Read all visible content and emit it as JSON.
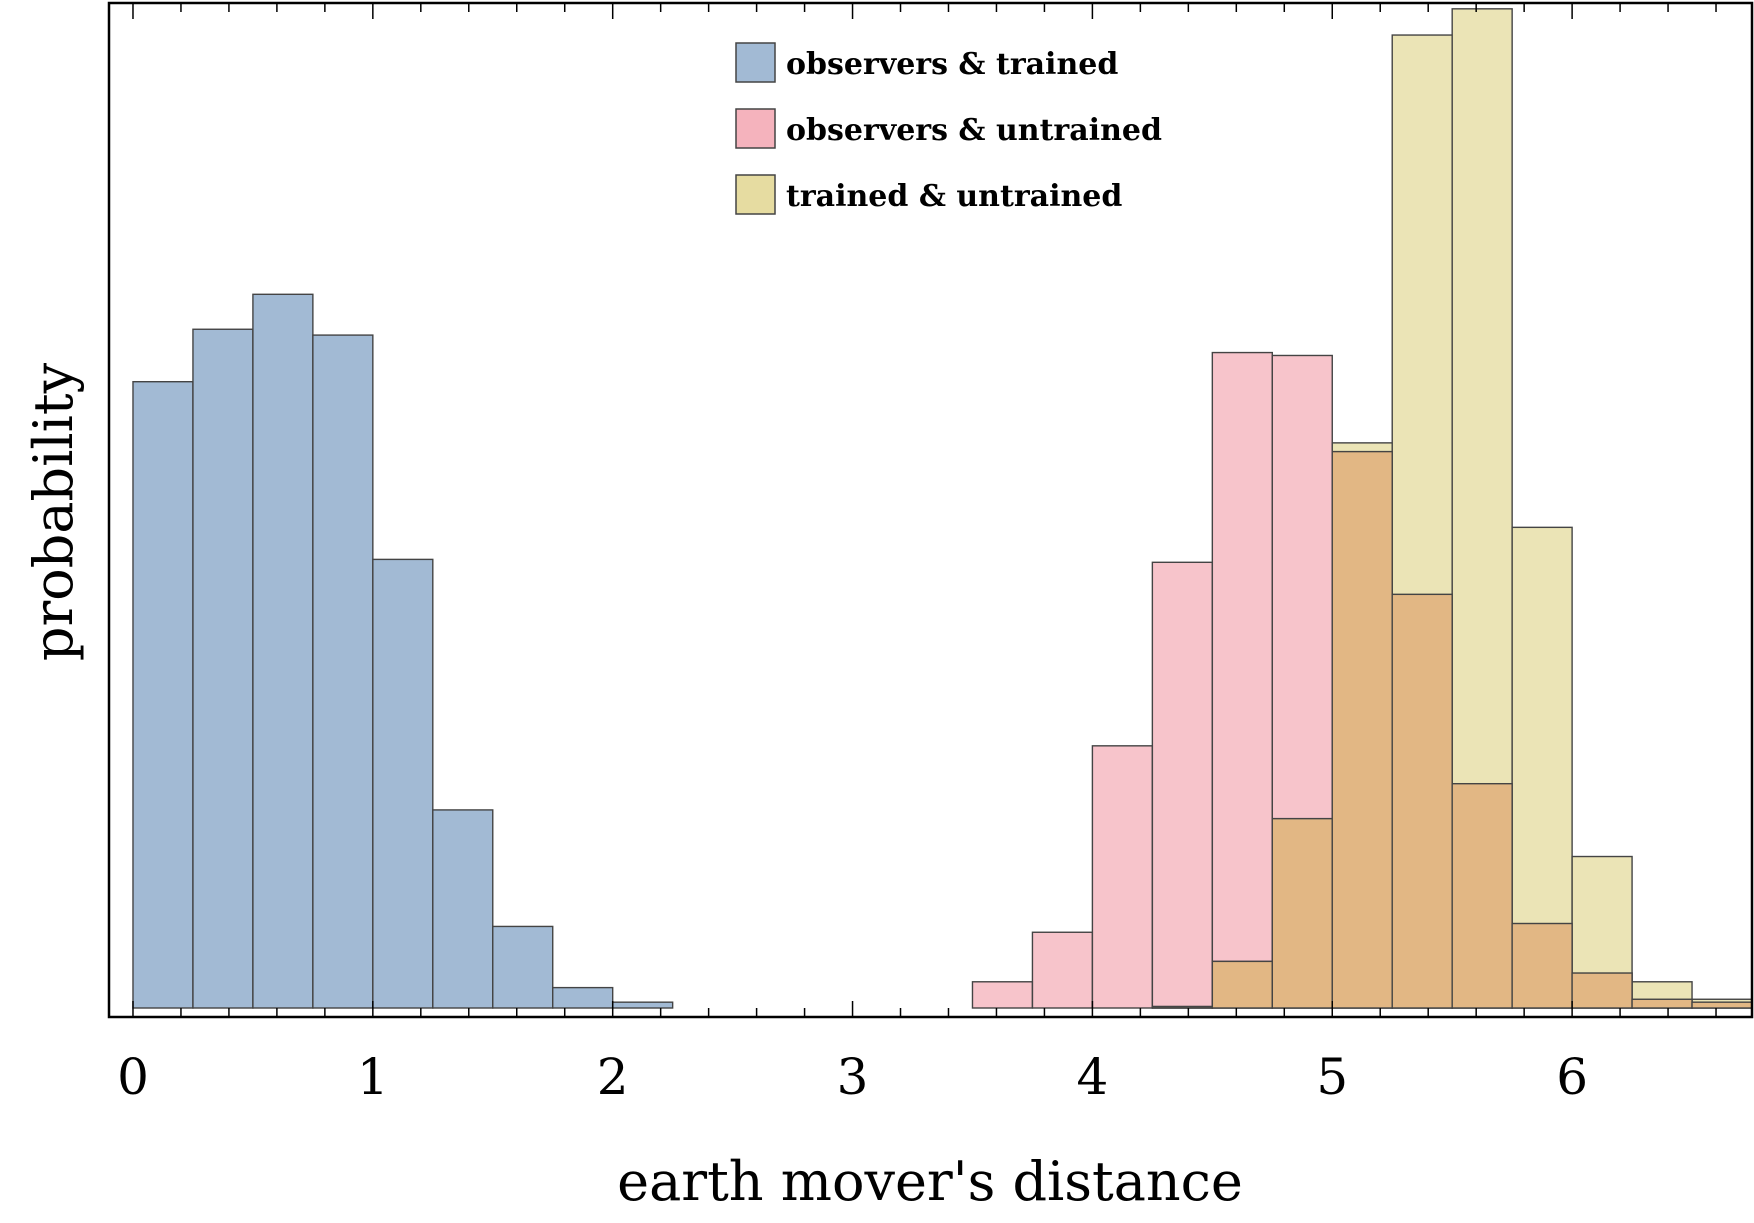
{
  "chart_data": {
    "type": "bar",
    "xlabel": "earth mover's distance",
    "ylabel": "probability",
    "xlim": [
      -0.1,
      6.75
    ],
    "ylim": [
      0,
      0.345
    ],
    "x_ticks": [
      "0",
      "1",
      "2",
      "3",
      "4",
      "5",
      "6"
    ],
    "y_ticks_shown": false,
    "bin_width": 0.25,
    "legend_position": "top-center",
    "series": [
      {
        "name": "observers & trained",
        "color": "#a2bad4",
        "bin_starts": [
          0,
          0.25,
          0.5,
          0.75,
          1.0,
          1.25,
          1.5,
          1.75,
          2.0
        ],
        "values": [
          0.215,
          0.233,
          0.245,
          0.231,
          0.154,
          0.068,
          0.028,
          0.007,
          0.002
        ]
      },
      {
        "name": "observers & untrained",
        "color": "#f5b3bd",
        "bin_starts": [
          3.5,
          3.75,
          4.0,
          4.25,
          4.5,
          4.75,
          5.0,
          5.25,
          5.5,
          5.75,
          6.0,
          6.25,
          6.5
        ],
        "values": [
          0.009,
          0.026,
          0.09,
          0.153,
          0.225,
          0.224,
          0.191,
          0.142,
          0.077,
          0.029,
          0.012,
          0.003,
          0.002
        ]
      },
      {
        "name": "trained & untrained",
        "color": "#e6dca1",
        "bin_starts": [
          4.25,
          4.5,
          4.75,
          5.0,
          5.25,
          5.5,
          5.75,
          6.0,
          6.25,
          6.5
        ],
        "values": [
          0.0005,
          0.016,
          0.065,
          0.194,
          0.334,
          0.343,
          0.165,
          0.052,
          0.009,
          0.003
        ]
      }
    ],
    "overlap_color": "#e2b784",
    "bar_stroke": "#444444"
  }
}
